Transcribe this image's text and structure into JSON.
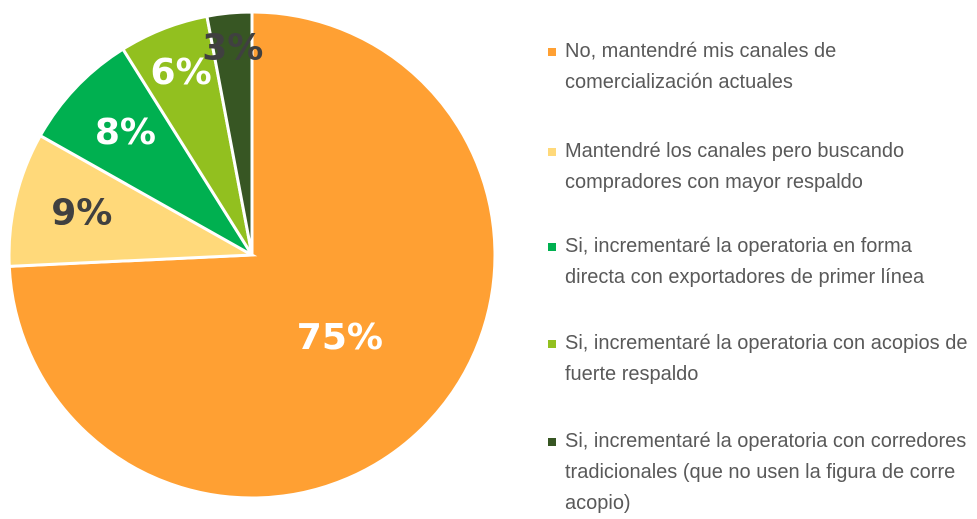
{
  "chart_data": {
    "type": "pie",
    "categories": [
      "No, mantendré mis canales de comercialización actuales",
      "Mantendré los canales pero buscando compradores con mayor respaldo",
      "Si, incrementaré la operatoria en forma directa con exportadores de primer línea",
      "Si, incrementaré la operatoria con acopios de fuerte respaldo",
      "Si, incrementaré la operatoria con corredores tradicionales (que no usen la figura de corre acopio)"
    ],
    "values": [
      75,
      9,
      8,
      6,
      3
    ],
    "value_labels": [
      "75%",
      "9%",
      "8%",
      "6%",
      "3%"
    ],
    "colors": [
      "#FFA033",
      "#FFD97A",
      "#00B050",
      "#92C01F",
      "#375623"
    ],
    "legend": "right"
  }
}
